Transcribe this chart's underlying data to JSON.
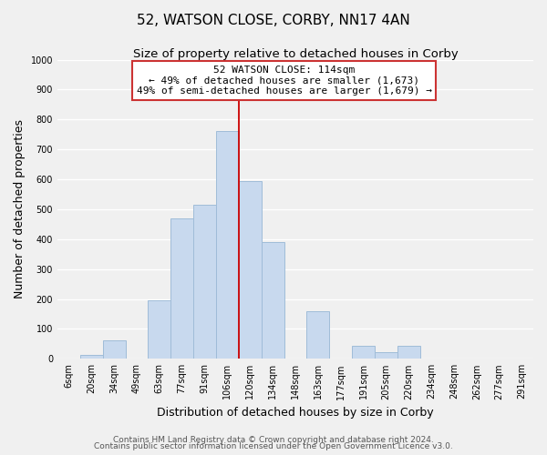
{
  "title": "52, WATSON CLOSE, CORBY, NN17 4AN",
  "subtitle": "Size of property relative to detached houses in Corby",
  "xlabel": "Distribution of detached houses by size in Corby",
  "ylabel": "Number of detached properties",
  "bin_labels": [
    "6sqm",
    "20sqm",
    "34sqm",
    "49sqm",
    "63sqm",
    "77sqm",
    "91sqm",
    "106sqm",
    "120sqm",
    "134sqm",
    "148sqm",
    "163sqm",
    "177sqm",
    "191sqm",
    "205sqm",
    "220sqm",
    "234sqm",
    "248sqm",
    "262sqm",
    "277sqm",
    "291sqm"
  ],
  "bar_values": [
    0,
    12,
    62,
    0,
    197,
    470,
    515,
    760,
    595,
    390,
    0,
    160,
    0,
    42,
    23,
    45,
    0,
    0,
    0,
    0,
    0
  ],
  "bar_color": "#c8d9ee",
  "bar_edge_color": "#a0bcd8",
  "marker_color": "#cc0000",
  "marker_label": "52 WATSON CLOSE: 114sqm",
  "annotation_line1": "← 49% of detached houses are smaller (1,673)",
  "annotation_line2": "49% of semi-detached houses are larger (1,679) →",
  "annotation_box_color": "#ffffff",
  "annotation_box_edge": "#cc3333",
  "footer1": "Contains HM Land Registry data © Crown copyright and database right 2024.",
  "footer2": "Contains public sector information licensed under the Open Government Licence v3.0.",
  "ylim": [
    0,
    1000
  ],
  "yticks": [
    0,
    100,
    200,
    300,
    400,
    500,
    600,
    700,
    800,
    900,
    1000
  ],
  "title_fontsize": 11,
  "subtitle_fontsize": 9.5,
  "axis_label_fontsize": 9,
  "tick_fontsize": 7,
  "annotation_fontsize": 8,
  "footer_fontsize": 6.5,
  "background_color": "#f0f0f0",
  "grid_color": "#ffffff"
}
